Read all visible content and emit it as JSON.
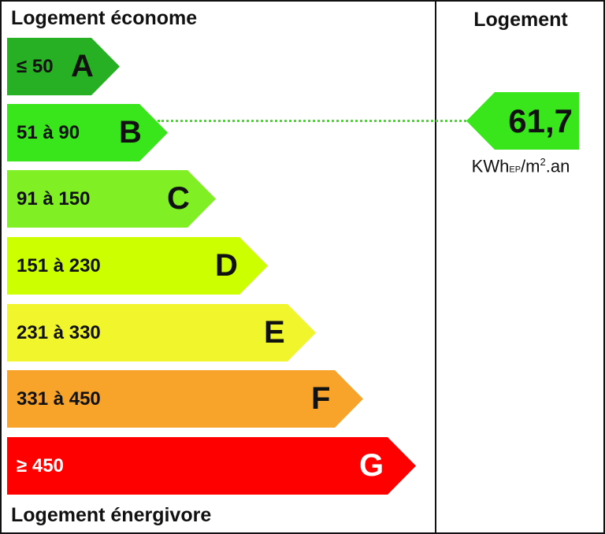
{
  "labels": {
    "top": "Logement économe",
    "bottom": "Logement énergivore",
    "column": "Logement"
  },
  "bands": [
    {
      "letter": "A",
      "range": "≤ 50",
      "color": "#27b024"
    },
    {
      "letter": "B",
      "range": "51 à 90",
      "color": "#39e61c"
    },
    {
      "letter": "C",
      "range": "91 à 150",
      "color": "#80ef24"
    },
    {
      "letter": "D",
      "range": "151 à 230",
      "color": "#ccff00"
    },
    {
      "letter": "E",
      "range": "231 à 330",
      "color": "#f0f52c"
    },
    {
      "letter": "F",
      "range": "331 à 450",
      "color": "#f8a42a"
    },
    {
      "letter": "G",
      "range": "≥ 450",
      "color": "#ff0000"
    }
  ],
  "current": {
    "value": "61,7",
    "class": "B",
    "color": "#39e61c",
    "unit_main": "KWh",
    "unit_sub": "EP",
    "unit_rest": "/m",
    "unit_sup": "2",
    "unit_tail": ".an"
  }
}
